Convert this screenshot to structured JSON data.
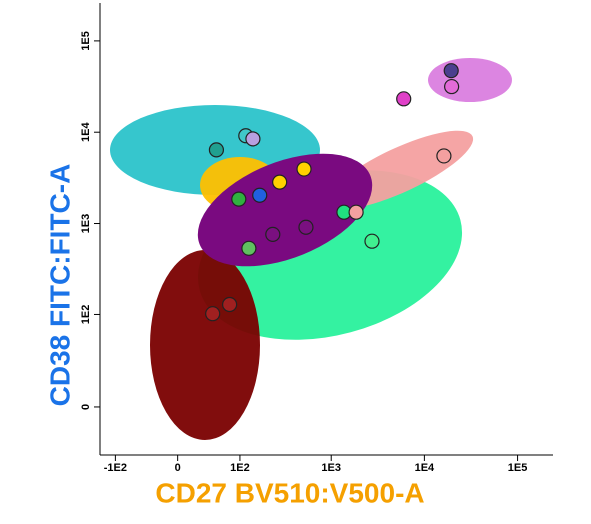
{
  "chart_data": {
    "type": "scatter",
    "xlabel": "CD27 BV510:V500-A",
    "ylabel": "CD38 FITC:FITC-A",
    "xscale": "biexponential",
    "yscale": "biexponential",
    "xlim": [
      -150,
      240000
    ],
    "ylim": [
      -30,
      260000
    ],
    "xticks": [
      {
        "value": -100,
        "label": "-1E2"
      },
      0,
      {
        "value": 100,
        "label": "1E2"
      },
      {
        "value": 1000,
        "label": "1E3"
      },
      {
        "value": 10000,
        "label": "1E4"
      },
      {
        "value": 100000,
        "label": "1E5"
      }
    ],
    "yticks": [
      0,
      {
        "value": 100,
        "label": "1E2"
      },
      {
        "value": 1000,
        "label": "1E3"
      },
      {
        "value": 10000,
        "label": "1E4"
      },
      {
        "value": 100000,
        "label": "1E5"
      }
    ],
    "x": [
      19400,
      19600,
      6000,
      16200,
      117,
      141,
      50,
      510,
      278,
      168,
      97,
      1370,
      1850,
      535,
      234,
      2740,
      127,
      75,
      44
    ],
    "values": [
      47200,
      31600,
      23200,
      5500,
      9150,
      8450,
      6400,
      3950,
      2840,
      2040,
      1850,
      1330,
      1330,
      910,
      760,
      640,
      535,
      129,
      102
    ],
    "colors": [
      "#4b3f8f",
      "#e36bd8",
      "#e040c8",
      "#f4a0a0",
      "#40c8c8",
      "#b8a0e0",
      "#20a090",
      "#ffd000",
      "#ffd000",
      "#2060e0",
      "#30b040",
      "#20e080",
      "#f4a0a0",
      "#7a1080",
      "#7a1080",
      "#40f090",
      "#60c060",
      "#a02020",
      "#a02020"
    ],
    "xtitle_color": "#f5a000",
    "ytitle_color": "#1a73e8"
  }
}
